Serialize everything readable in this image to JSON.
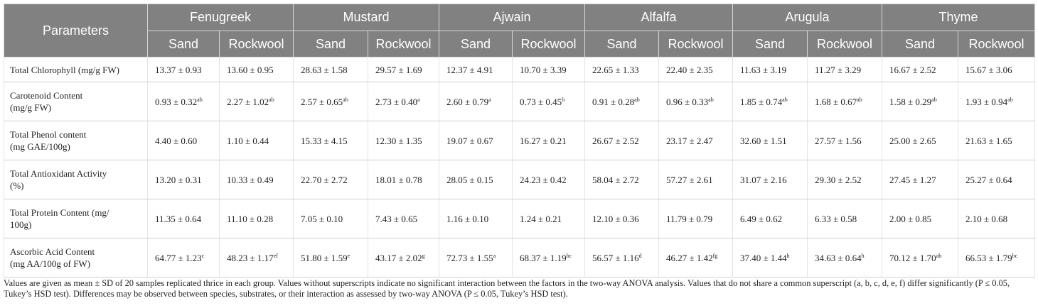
{
  "table": {
    "header": {
      "parameters": "Parameters",
      "species": [
        {
          "name": "Fenugreek",
          "columns": [
            "Sand",
            "Rockwool"
          ]
        },
        {
          "name": "Mustard",
          "columns": [
            "Sand",
            "Rockwool"
          ]
        },
        {
          "name": "Ajwain",
          "columns": [
            "Sand",
            "Rockwool"
          ]
        },
        {
          "name": "Alfalfa",
          "columns": [
            "Sand",
            "Rockwool"
          ]
        },
        {
          "name": "Arugula",
          "columns": [
            "Sand",
            "Rockwool"
          ]
        },
        {
          "name": "Thyme",
          "columns": [
            "Sand",
            "Rockwool"
          ]
        }
      ]
    },
    "rows": [
      {
        "parameter": [
          "Total Chlorophyll (mg/g FW)"
        ],
        "cells": [
          "13.37 ± 0.93",
          "13.60 ± 0.95",
          "28.63 ± 1.58",
          "29.57 ± 1.69",
          "12.37 ± 4.91",
          "10.70 ± 3.39",
          "22.65 ± 1.33",
          "22.40 ± 2.35",
          "11.63 ± 3.19",
          "11.27 ± 3.29",
          "16.67 ± 2.52",
          "15.67 ± 3.06"
        ]
      },
      {
        "parameter": [
          "Carotenoid Content",
          "(mg/g FW)"
        ],
        "cells": [
          {
            "value": "0.93 ± 0.32",
            "sup": "ab"
          },
          {
            "value": "2.27 ± 1.02",
            "sup": "ab"
          },
          {
            "value": "2.57 ± 0.65",
            "sup": "ab"
          },
          {
            "value": "2.73 ± 0.40",
            "sup": "a"
          },
          {
            "value": "2.60 ± 0.79",
            "sup": "a"
          },
          {
            "value": "0.73 ± 0.45",
            "sup": "b"
          },
          {
            "value": "0.91 ± 0.28",
            "sup": "ab"
          },
          {
            "value": "0.96 ± 0.33",
            "sup": "ab"
          },
          {
            "value": "1.85 ± 0.74",
            "sup": "ab"
          },
          {
            "value": "1.68 ± 0.67",
            "sup": "ab"
          },
          {
            "value": "1.58 ± 0.29",
            "sup": "ab"
          },
          {
            "value": "1.93 ± 0.94",
            "sup": "ab"
          }
        ]
      },
      {
        "parameter": [
          "Total Phenol content",
          "(mg GAE/100g)"
        ],
        "cells": [
          "4.40 ± 0.60",
          "1.10 ± 0.44",
          "15.33 ± 4.15",
          "12.30 ± 1.35",
          "19.07 ± 0.67",
          "16.27 ± 0.21",
          "26.67 ± 2.52",
          "23.17 ± 2.47",
          "32.60 ± 1.51",
          "27.57 ± 1.56",
          "25.00 ± 2.65",
          "21.63 ± 1.65"
        ]
      },
      {
        "parameter": [
          "Total Antioxidant Activity",
          "(%)"
        ],
        "cells": [
          "13.20 ± 0.31",
          "10.33 ± 0.49",
          "22.70 ± 2.72",
          "18.01 ± 0.78",
          "28.05 ± 0.15",
          "24.23 ± 0.42",
          "58.04 ± 2.72",
          "57.27 ± 2.61",
          "31.07 ± 2.16",
          "29.30 ± 2.52",
          "27.45 ± 1.27",
          "25.27 ± 0.64"
        ]
      },
      {
        "parameter": [
          "Total Protein Content (mg/",
          "100g)"
        ],
        "cells": [
          "11.35 ± 0.64",
          "11.10 ± 0.28",
          "7.05 ± 0.10",
          "7.43 ± 0.65",
          "1.16 ± 0.10",
          "1.24 ± 0.21",
          "12.10 ± 0.36",
          "11.79 ± 0.79",
          "6.49 ± 0.62",
          "6.33 ± 0.58",
          "2.00 ± 0.85",
          "2.10 ± 0.68"
        ]
      },
      {
        "parameter": [
          "Ascorbic Acid Content",
          "(mg AA/100g of FW)"
        ],
        "cells": [
          {
            "value": "64.77 ± 1.23",
            "sup": "c"
          },
          {
            "value": "48.23 ± 1.17",
            "sup": "ef"
          },
          {
            "value": "51.80 ± 1.59",
            "sup": "e"
          },
          {
            "value": "43.17 ± 2.02",
            "sup": "g"
          },
          {
            "value": "72.73 ± 1.55",
            "sup": "a"
          },
          {
            "value": "68.37 ± 1.19",
            "sup": "bc"
          },
          {
            "value": "56.57 ± 1.16",
            "sup": "d"
          },
          {
            "value": "46.27 ± 1.42",
            "sup": "fg"
          },
          {
            "value": "37.40 ± 1.44",
            "sup": "h"
          },
          {
            "value": "34.63 ± 0.64",
            "sup": "h"
          },
          {
            "value": "70.12 ± 1.70",
            "sup": "ab"
          },
          {
            "value": "66.53 ± 1.79",
            "sup": "bc"
          }
        ]
      }
    ]
  },
  "footnote": "Values are given as mean ± SD of 20 samples replicated thrice in each group. Values without superscripts indicate no significant interaction between the factors in the two-way ANOVA analysis. Values that do not share a common superscript (a, b, c, d, e, f) differ significantly (P ≤ 0.05, Tukey’s HSD test). Differences may be observed between species, substrates, or their interaction as assessed by two-way ANOVA (P ≤ 0.05, Tukey’s HSD test)."
}
